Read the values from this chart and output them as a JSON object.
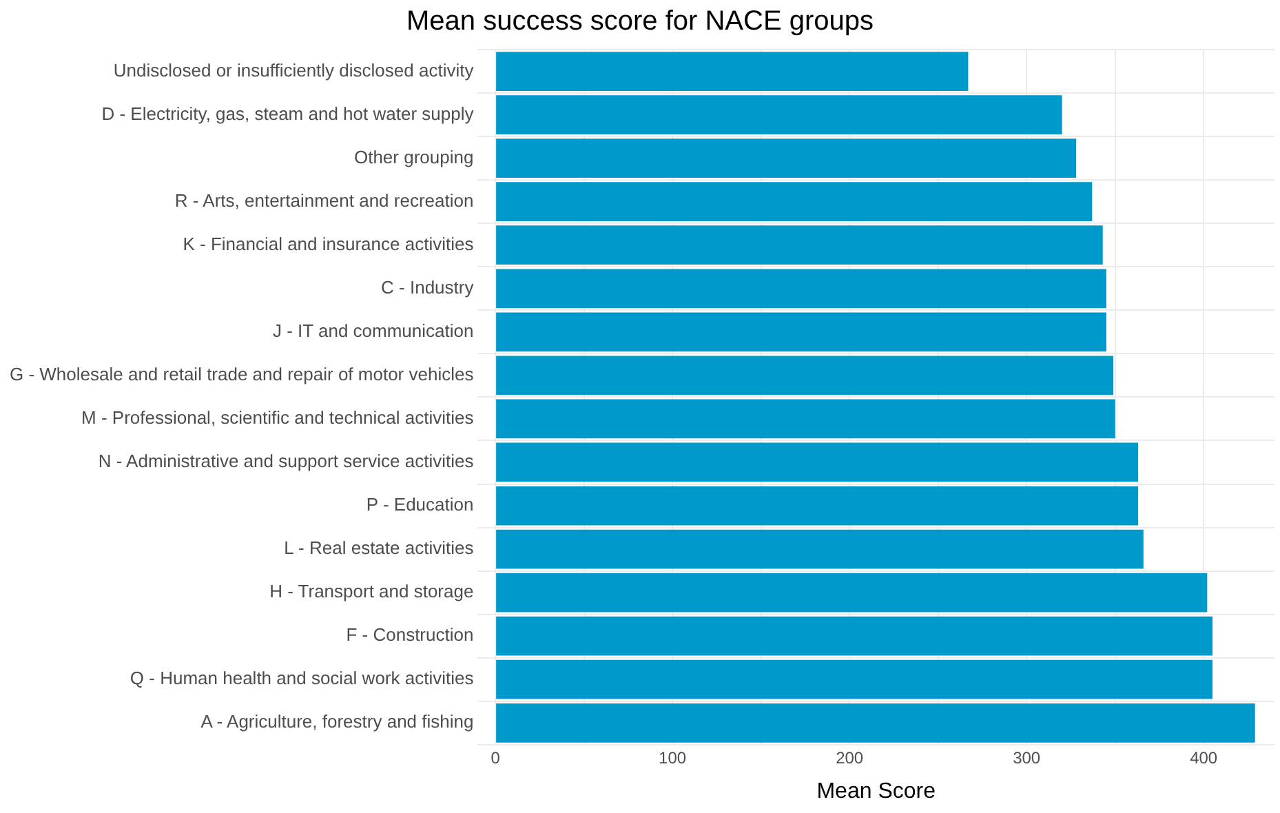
{
  "chart_data": {
    "type": "bar",
    "orientation": "horizontal",
    "title": "Mean success score for NACE groups",
    "xlabel": "Mean Score",
    "categories": [
      "Undisclosed or insufficiently disclosed activity",
      "D - Electricity, gas, steam and hot water supply",
      "Other grouping",
      "R - Arts, entertainment and recreation",
      "K - Financial and insurance activities",
      "C - Industry",
      "J - IT and communication",
      "G - Wholesale and retail trade and repair of motor vehicles",
      "M - Professional, scientific and technical activities",
      "N - Administrative and support service activities",
      "P - Education",
      "L - Real estate activities",
      "H - Transport and storage",
      "F - Construction",
      "Q - Human health and social work activities",
      "A - Agriculture, forestry and fishing"
    ],
    "values": [
      267,
      320,
      328,
      337,
      343,
      345,
      345,
      349,
      350,
      363,
      363,
      366,
      402,
      405,
      405,
      429
    ],
    "color": "#0099cc",
    "xlim": [
      -10,
      440
    ],
    "xticks": [
      0,
      {
        "value": 50,
        "label": null
      },
      100,
      {
        "value": 150,
        "label": null
      },
      200,
      {
        "value": 250,
        "label": null
      },
      300,
      {
        "value": 350,
        "label": null
      },
      400
    ],
    "grid": true,
    "legend": false
  }
}
